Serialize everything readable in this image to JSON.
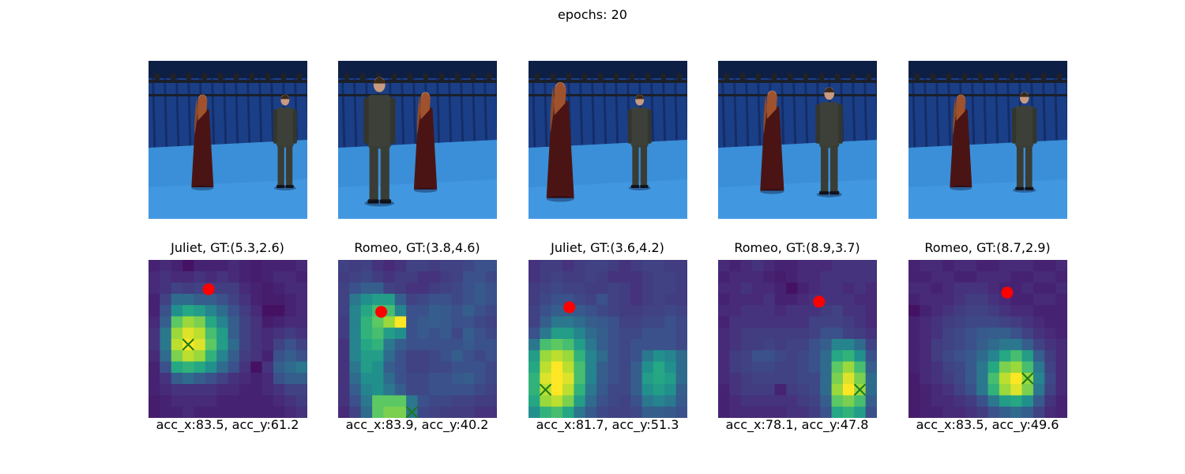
{
  "suptitle": "epochs: 20",
  "colors": {
    "backdrop": "#1b3f86",
    "floor": "#3a8fd8",
    "rig": "#1a1f2a",
    "juliet_dress": "#4a1414",
    "romeo_suit": "#3c4038",
    "gt_marker": "#ff0000",
    "pred_marker": "#1a7a1a",
    "colormap": [
      "#440154",
      "#472c7a",
      "#3b518b",
      "#2c718e",
      "#21908d",
      "#27ad81",
      "#5cc863",
      "#aadc32",
      "#fde725"
    ]
  },
  "chart_data": [
    {
      "type": "heatmap",
      "title": "Juliet, GT:(5.3,2.6)",
      "xlabel": "acc_x:83.5, acc_y:61.2",
      "grid": false,
      "gt": {
        "x": 5.3,
        "y": 2.6
      },
      "pred": {
        "x": 3.5,
        "y": 7.5
      },
      "values": [
        [
          0.1,
          0.12,
          0.1,
          0.05,
          0.1,
          0.1,
          0.1,
          0.12,
          0.1,
          0.08,
          0.1,
          0.1,
          0.1,
          0.12
        ],
        [
          0.12,
          0.15,
          0.12,
          0.12,
          0.15,
          0.12,
          0.15,
          0.12,
          0.1,
          0.08,
          0.1,
          0.12,
          0.12,
          0.1
        ],
        [
          0.12,
          0.15,
          0.2,
          0.18,
          0.2,
          0.18,
          0.18,
          0.18,
          0.12,
          0.1,
          0.08,
          0.1,
          0.12,
          0.12
        ],
        [
          0.1,
          0.2,
          0.35,
          0.35,
          0.3,
          0.3,
          0.25,
          0.2,
          0.15,
          0.1,
          0.08,
          0.08,
          0.1,
          0.12
        ],
        [
          0.1,
          0.25,
          0.5,
          0.6,
          0.55,
          0.45,
          0.35,
          0.25,
          0.18,
          0.12,
          0.05,
          0.05,
          0.1,
          0.12
        ],
        [
          0.12,
          0.3,
          0.75,
          0.85,
          0.8,
          0.6,
          0.45,
          0.3,
          0.2,
          0.15,
          0.08,
          0.1,
          0.12,
          0.12
        ],
        [
          0.15,
          0.4,
          0.85,
          0.95,
          0.9,
          0.7,
          0.55,
          0.3,
          0.2,
          0.15,
          0.12,
          0.15,
          0.18,
          0.15
        ],
        [
          0.15,
          0.4,
          0.9,
          1.0,
          0.95,
          0.75,
          0.55,
          0.35,
          0.2,
          0.15,
          0.12,
          0.2,
          0.25,
          0.2
        ],
        [
          0.12,
          0.35,
          0.8,
          0.9,
          0.85,
          0.65,
          0.45,
          0.3,
          0.18,
          0.15,
          0.1,
          0.25,
          0.3,
          0.25
        ],
        [
          0.1,
          0.25,
          0.6,
          0.65,
          0.6,
          0.5,
          0.35,
          0.25,
          0.15,
          0.05,
          0.15,
          0.3,
          0.35,
          0.4
        ],
        [
          0.1,
          0.15,
          0.3,
          0.35,
          0.3,
          0.25,
          0.2,
          0.15,
          0.12,
          0.1,
          0.12,
          0.25,
          0.3,
          0.3
        ],
        [
          0.1,
          0.12,
          0.15,
          0.15,
          0.15,
          0.15,
          0.12,
          0.12,
          0.1,
          0.1,
          0.12,
          0.15,
          0.2,
          0.2
        ],
        [
          0.08,
          0.1,
          0.12,
          0.12,
          0.12,
          0.12,
          0.1,
          0.1,
          0.1,
          0.1,
          0.1,
          0.12,
          0.15,
          0.18
        ],
        [
          0.08,
          0.1,
          0.1,
          0.12,
          0.1,
          0.1,
          0.1,
          0.1,
          0.1,
          0.1,
          0.1,
          0.1,
          0.12,
          0.15
        ]
      ]
    },
    {
      "type": "heatmap",
      "title": "Romeo, GT:(3.8,4.6)",
      "xlabel": "acc_x:83.9, acc_y:40.2",
      "grid": false,
      "gt": {
        "x": 3.8,
        "y": 4.6
      },
      "pred": {
        "x": 6.5,
        "y": 13.5
      },
      "values": [
        [
          0.2,
          0.18,
          0.2,
          0.15,
          0.12,
          0.15,
          0.2,
          0.2,
          0.18,
          0.2,
          0.2,
          0.22,
          0.25,
          0.25
        ],
        [
          0.18,
          0.2,
          0.22,
          0.18,
          0.15,
          0.18,
          0.18,
          0.15,
          0.15,
          0.18,
          0.2,
          0.25,
          0.25,
          0.22
        ],
        [
          0.2,
          0.25,
          0.3,
          0.3,
          0.2,
          0.18,
          0.15,
          0.15,
          0.18,
          0.2,
          0.22,
          0.25,
          0.28,
          0.25
        ],
        [
          0.2,
          0.4,
          0.5,
          0.55,
          0.55,
          0.3,
          0.2,
          0.22,
          0.25,
          0.25,
          0.22,
          0.25,
          0.28,
          0.25
        ],
        [
          0.2,
          0.45,
          0.6,
          0.7,
          0.7,
          0.45,
          0.25,
          0.25,
          0.3,
          0.28,
          0.25,
          0.3,
          0.25,
          0.22
        ],
        [
          0.18,
          0.45,
          0.65,
          0.75,
          0.85,
          1.0,
          0.25,
          0.28,
          0.3,
          0.28,
          0.25,
          0.25,
          0.22,
          0.2
        ],
        [
          0.18,
          0.45,
          0.65,
          0.7,
          0.55,
          0.5,
          0.25,
          0.28,
          0.25,
          0.28,
          0.22,
          0.3,
          0.25,
          0.22
        ],
        [
          0.15,
          0.45,
          0.6,
          0.65,
          0.4,
          0.3,
          0.25,
          0.25,
          0.25,
          0.25,
          0.25,
          0.28,
          0.25,
          0.25
        ],
        [
          0.15,
          0.45,
          0.55,
          0.55,
          0.35,
          0.25,
          0.2,
          0.2,
          0.22,
          0.25,
          0.3,
          0.25,
          0.22,
          0.25
        ],
        [
          0.15,
          0.4,
          0.55,
          0.5,
          0.3,
          0.25,
          0.2,
          0.2,
          0.22,
          0.22,
          0.25,
          0.25,
          0.25,
          0.22
        ],
        [
          0.15,
          0.35,
          0.5,
          0.5,
          0.35,
          0.25,
          0.22,
          0.22,
          0.25,
          0.25,
          0.28,
          0.3,
          0.25,
          0.22
        ],
        [
          0.15,
          0.3,
          0.45,
          0.5,
          0.4,
          0.3,
          0.22,
          0.22,
          0.25,
          0.25,
          0.25,
          0.25,
          0.22,
          0.2
        ],
        [
          0.15,
          0.25,
          0.4,
          0.75,
          0.75,
          0.75,
          0.4,
          0.25,
          0.22,
          0.22,
          0.2,
          0.2,
          0.18,
          0.18
        ],
        [
          0.12,
          0.2,
          0.35,
          0.75,
          0.8,
          0.8,
          0.4,
          0.22,
          0.2,
          0.18,
          0.18,
          0.18,
          0.15,
          0.15
        ]
      ]
    },
    {
      "type": "heatmap",
      "title": "Juliet, GT:(3.6,4.2)",
      "xlabel": "acc_x:81.7, acc_y:51.3",
      "grid": false,
      "gt": {
        "x": 3.6,
        "y": 4.2
      },
      "pred": {
        "x": 1.5,
        "y": 11.5
      },
      "values": [
        [
          0.15,
          0.18,
          0.18,
          0.15,
          0.18,
          0.2,
          0.2,
          0.18,
          0.15,
          0.18,
          0.2,
          0.2,
          0.18,
          0.18
        ],
        [
          0.15,
          0.18,
          0.2,
          0.18,
          0.18,
          0.2,
          0.18,
          0.15,
          0.15,
          0.15,
          0.18,
          0.2,
          0.2,
          0.18
        ],
        [
          0.18,
          0.2,
          0.22,
          0.2,
          0.2,
          0.18,
          0.18,
          0.2,
          0.18,
          0.15,
          0.18,
          0.2,
          0.2,
          0.18
        ],
        [
          0.18,
          0.22,
          0.25,
          0.25,
          0.22,
          0.2,
          0.25,
          0.2,
          0.18,
          0.15,
          0.18,
          0.2,
          0.18,
          0.18
        ],
        [
          0.2,
          0.25,
          0.3,
          0.3,
          0.28,
          0.25,
          0.22,
          0.2,
          0.18,
          0.18,
          0.2,
          0.2,
          0.22,
          0.2
        ],
        [
          0.2,
          0.3,
          0.4,
          0.4,
          0.35,
          0.3,
          0.28,
          0.25,
          0.2,
          0.2,
          0.22,
          0.22,
          0.25,
          0.22
        ],
        [
          0.25,
          0.4,
          0.55,
          0.55,
          0.45,
          0.35,
          0.3,
          0.25,
          0.22,
          0.22,
          0.25,
          0.25,
          0.25,
          0.22
        ],
        [
          0.4,
          0.7,
          0.75,
          0.7,
          0.55,
          0.4,
          0.3,
          0.25,
          0.22,
          0.25,
          0.25,
          0.25,
          0.25,
          0.22
        ],
        [
          0.55,
          0.85,
          0.9,
          0.85,
          0.65,
          0.45,
          0.35,
          0.25,
          0.22,
          0.25,
          0.4,
          0.5,
          0.45,
          0.35
        ],
        [
          0.6,
          0.9,
          1.0,
          0.9,
          0.7,
          0.45,
          0.3,
          0.25,
          0.22,
          0.3,
          0.5,
          0.6,
          0.5,
          0.35
        ],
        [
          0.65,
          0.95,
          1.0,
          0.95,
          0.7,
          0.45,
          0.3,
          0.25,
          0.22,
          0.3,
          0.55,
          0.6,
          0.55,
          0.35
        ],
        [
          0.65,
          0.9,
          1.0,
          0.9,
          0.65,
          0.4,
          0.28,
          0.22,
          0.22,
          0.3,
          0.5,
          0.55,
          0.5,
          0.3
        ],
        [
          0.6,
          0.85,
          0.9,
          0.8,
          0.55,
          0.35,
          0.25,
          0.22,
          0.2,
          0.25,
          0.4,
          0.45,
          0.4,
          0.28
        ],
        [
          0.5,
          0.65,
          0.7,
          0.6,
          0.4,
          0.28,
          0.22,
          0.2,
          0.2,
          0.22,
          0.3,
          0.3,
          0.28,
          0.25
        ]
      ]
    },
    {
      "type": "heatmap",
      "title": "Romeo, GT:(8.9,3.7)",
      "xlabel": "acc_x:78.1, acc_y:47.8",
      "grid": false,
      "gt": {
        "x": 8.9,
        "y": 3.7
      },
      "pred": {
        "x": 12.5,
        "y": 11.5
      },
      "values": [
        [
          0.12,
          0.1,
          0.12,
          0.15,
          0.12,
          0.1,
          0.1,
          0.12,
          0.12,
          0.12,
          0.15,
          0.15,
          0.15,
          0.15
        ],
        [
          0.1,
          0.12,
          0.12,
          0.12,
          0.1,
          0.08,
          0.1,
          0.12,
          0.12,
          0.15,
          0.15,
          0.15,
          0.15,
          0.15
        ],
        [
          0.12,
          0.12,
          0.15,
          0.12,
          0.12,
          0.1,
          0.05,
          0.1,
          0.12,
          0.15,
          0.15,
          0.12,
          0.15,
          0.12
        ],
        [
          0.1,
          0.12,
          0.12,
          0.12,
          0.15,
          0.1,
          0.1,
          0.12,
          0.15,
          0.15,
          0.15,
          0.15,
          0.12,
          0.12
        ],
        [
          0.12,
          0.12,
          0.15,
          0.15,
          0.15,
          0.12,
          0.15,
          0.15,
          0.15,
          0.18,
          0.2,
          0.15,
          0.15,
          0.12
        ],
        [
          0.1,
          0.15,
          0.15,
          0.15,
          0.15,
          0.15,
          0.15,
          0.15,
          0.2,
          0.2,
          0.2,
          0.18,
          0.15,
          0.12
        ],
        [
          0.12,
          0.15,
          0.18,
          0.18,
          0.18,
          0.18,
          0.18,
          0.18,
          0.2,
          0.25,
          0.25,
          0.2,
          0.18,
          0.15
        ],
        [
          0.12,
          0.15,
          0.18,
          0.18,
          0.2,
          0.18,
          0.2,
          0.2,
          0.25,
          0.3,
          0.45,
          0.45,
          0.35,
          0.2
        ],
        [
          0.12,
          0.18,
          0.2,
          0.25,
          0.25,
          0.22,
          0.2,
          0.22,
          0.25,
          0.35,
          0.6,
          0.65,
          0.5,
          0.25
        ],
        [
          0.12,
          0.18,
          0.2,
          0.22,
          0.22,
          0.2,
          0.2,
          0.22,
          0.25,
          0.35,
          0.75,
          0.85,
          0.7,
          0.3
        ],
        [
          0.12,
          0.15,
          0.18,
          0.2,
          0.2,
          0.2,
          0.2,
          0.22,
          0.22,
          0.35,
          0.8,
          0.95,
          0.8,
          0.35
        ],
        [
          0.1,
          0.15,
          0.18,
          0.18,
          0.18,
          0.1,
          0.18,
          0.2,
          0.22,
          0.35,
          0.85,
          1.0,
          0.85,
          0.35
        ],
        [
          0.1,
          0.12,
          0.15,
          0.15,
          0.15,
          0.15,
          0.15,
          0.18,
          0.2,
          0.3,
          0.75,
          0.8,
          0.7,
          0.3
        ],
        [
          0.1,
          0.12,
          0.12,
          0.12,
          0.12,
          0.12,
          0.15,
          0.15,
          0.18,
          0.25,
          0.6,
          0.65,
          0.55,
          0.25
        ]
      ]
    },
    {
      "type": "heatmap",
      "title": "Romeo, GT:(8.7,2.9)",
      "xlabel": "acc_x:83.5, acc_y:49.6",
      "grid": false,
      "gt": {
        "x": 8.7,
        "y": 2.9
      },
      "pred": {
        "x": 10.5,
        "y": 10.5
      },
      "values": [
        [
          0.1,
          0.12,
          0.12,
          0.1,
          0.12,
          0.12,
          0.1,
          0.1,
          0.12,
          0.12,
          0.12,
          0.1,
          0.1,
          0.12
        ],
        [
          0.1,
          0.1,
          0.12,
          0.12,
          0.1,
          0.1,
          0.12,
          0.12,
          0.12,
          0.1,
          0.1,
          0.12,
          0.12,
          0.1
        ],
        [
          0.12,
          0.12,
          0.1,
          0.12,
          0.15,
          0.15,
          0.15,
          0.12,
          0.1,
          0.1,
          0.12,
          0.1,
          0.1,
          0.12
        ],
        [
          0.1,
          0.12,
          0.12,
          0.12,
          0.15,
          0.18,
          0.18,
          0.15,
          0.12,
          0.1,
          0.1,
          0.12,
          0.12,
          0.1
        ],
        [
          0.05,
          0.1,
          0.12,
          0.15,
          0.18,
          0.2,
          0.2,
          0.18,
          0.15,
          0.12,
          0.12,
          0.1,
          0.1,
          0.1
        ],
        [
          0.1,
          0.12,
          0.15,
          0.18,
          0.2,
          0.22,
          0.22,
          0.22,
          0.2,
          0.18,
          0.15,
          0.12,
          0.1,
          0.1
        ],
        [
          0.1,
          0.12,
          0.15,
          0.2,
          0.22,
          0.25,
          0.28,
          0.3,
          0.3,
          0.25,
          0.2,
          0.15,
          0.12,
          0.1
        ],
        [
          0.1,
          0.12,
          0.18,
          0.2,
          0.22,
          0.25,
          0.3,
          0.35,
          0.4,
          0.4,
          0.3,
          0.2,
          0.15,
          0.12
        ],
        [
          0.1,
          0.12,
          0.18,
          0.22,
          0.25,
          0.28,
          0.35,
          0.45,
          0.6,
          0.7,
          0.55,
          0.3,
          0.18,
          0.12
        ],
        [
          0.1,
          0.12,
          0.15,
          0.2,
          0.22,
          0.28,
          0.4,
          0.6,
          0.8,
          0.85,
          0.7,
          0.4,
          0.2,
          0.12
        ],
        [
          0.08,
          0.12,
          0.15,
          0.18,
          0.22,
          0.28,
          0.4,
          0.7,
          0.9,
          1.0,
          0.85,
          0.45,
          0.22,
          0.12
        ],
        [
          0.08,
          0.1,
          0.12,
          0.15,
          0.2,
          0.25,
          0.4,
          0.65,
          0.85,
          0.95,
          0.8,
          0.4,
          0.2,
          0.12
        ],
        [
          0.08,
          0.1,
          0.12,
          0.12,
          0.15,
          0.18,
          0.25,
          0.4,
          0.55,
          0.6,
          0.5,
          0.28,
          0.15,
          0.1
        ],
        [
          0.08,
          0.1,
          0.1,
          0.12,
          0.12,
          0.15,
          0.18,
          0.25,
          0.3,
          0.35,
          0.3,
          0.2,
          0.12,
          0.1
        ]
      ]
    }
  ],
  "photos": [
    {
      "juliet_x": 0.34,
      "juliet_scale": 1.0,
      "romeo_x": 0.86,
      "romeo_scale": 1.0,
      "romeo_front": false
    },
    {
      "juliet_x": 0.55,
      "juliet_scale": 1.05,
      "romeo_x": 0.26,
      "romeo_scale": 1.35,
      "romeo_front": true
    },
    {
      "juliet_x": 0.2,
      "juliet_scale": 1.25,
      "romeo_x": 0.7,
      "romeo_scale": 1.0,
      "romeo_front": false
    },
    {
      "juliet_x": 0.34,
      "juliet_scale": 1.08,
      "romeo_x": 0.7,
      "romeo_scale": 1.15,
      "romeo_front": false
    },
    {
      "juliet_x": 0.33,
      "juliet_scale": 1.0,
      "romeo_x": 0.73,
      "romeo_scale": 1.05,
      "romeo_front": false
    }
  ]
}
